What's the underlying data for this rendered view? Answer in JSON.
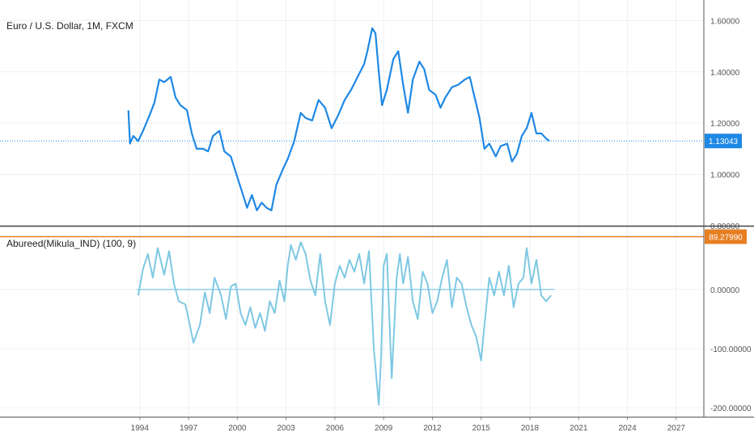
{
  "charts": {
    "price": {
      "title": "Euro / U.S. Dollar, 1M, FXCM",
      "type": "line",
      "color": "#1e88e5",
      "ylim": [
        0.8,
        1.68
      ],
      "yticks": [
        "1.60000",
        "1.40000",
        "1.20000",
        "1.00000",
        "0.80000"
      ],
      "ytick_values": [
        1.6,
        1.4,
        1.2,
        1.0,
        0.8
      ],
      "last_value": 1.13043,
      "last_label": "1.13043",
      "series": [
        {
          "x": [
            1993.3,
            1993.4,
            1993.6,
            1993.9,
            1994.2,
            1994.6,
            1994.9,
            1995.2,
            1995.5,
            1995.9,
            1996.2,
            1996.5,
            1996.9,
            1997.2,
            1997.5,
            1997.9,
            1998.2,
            1998.5,
            1998.9,
            1999.2,
            1999.6,
            2000.0,
            2000.3,
            2000.6,
            2000.9,
            2001.2,
            2001.5,
            2001.8,
            2002.1,
            2002.4,
            2002.8,
            2003.1,
            2003.5,
            2003.9,
            2004.2,
            2004.6,
            2005.0,
            2005.4,
            2005.8,
            2006.2,
            2006.6,
            2007.0,
            2007.4,
            2007.8,
            2008.0,
            2008.3,
            2008.5,
            2008.7,
            2008.9,
            2009.2,
            2009.6,
            2009.9,
            2010.2,
            2010.5,
            2010.8,
            2011.2,
            2011.5,
            2011.8,
            2012.2,
            2012.5,
            2012.8,
            2013.2,
            2013.6,
            2014.0,
            2014.3,
            2014.6,
            2014.9,
            2015.2,
            2015.5,
            2015.9,
            2016.2,
            2016.6,
            2016.9,
            2017.2,
            2017.5,
            2017.8,
            2018.1,
            2018.4,
            2018.7,
            2019.0,
            2019.2
          ],
          "y": [
            1.25,
            1.12,
            1.15,
            1.13,
            1.17,
            1.23,
            1.28,
            1.37,
            1.36,
            1.38,
            1.3,
            1.27,
            1.25,
            1.16,
            1.1,
            1.1,
            1.09,
            1.15,
            1.17,
            1.09,
            1.07,
            0.99,
            0.93,
            0.87,
            0.92,
            0.86,
            0.89,
            0.87,
            0.86,
            0.96,
            1.02,
            1.06,
            1.13,
            1.24,
            1.22,
            1.21,
            1.29,
            1.26,
            1.18,
            1.23,
            1.29,
            1.33,
            1.38,
            1.43,
            1.48,
            1.57,
            1.55,
            1.4,
            1.27,
            1.33,
            1.45,
            1.48,
            1.35,
            1.24,
            1.37,
            1.44,
            1.41,
            1.33,
            1.31,
            1.26,
            1.3,
            1.34,
            1.35,
            1.37,
            1.38,
            1.3,
            1.22,
            1.1,
            1.12,
            1.07,
            1.11,
            1.12,
            1.05,
            1.08,
            1.15,
            1.18,
            1.24,
            1.16,
            1.16,
            1.14,
            1.13
          ]
        }
      ]
    },
    "indicator": {
      "title": "Abureed(Mikula_IND) (100, 9)",
      "type": "line",
      "color": "#7ec8e3",
      "ylim": [
        -215,
        105
      ],
      "yticks": [
        "0.00000",
        "-100.00000",
        "-200.00000"
      ],
      "ytick_values": [
        0,
        -100,
        -200
      ],
      "upper_line_value": 89.2799,
      "upper_line_label": "89.27990",
      "upper_line_color": "#e67e22",
      "series": [
        {
          "x": [
            1993.9,
            1994.2,
            1994.5,
            1994.8,
            1995.1,
            1995.5,
            1995.8,
            1996.1,
            1996.4,
            1996.8,
            1997.0,
            1997.3,
            1997.7,
            1998.0,
            1998.3,
            1998.6,
            1999.0,
            1999.3,
            1999.6,
            1999.9,
            2000.2,
            2000.5,
            2000.8,
            2001.1,
            2001.4,
            2001.7,
            2002.0,
            2002.3,
            2002.6,
            2002.9,
            2003.1,
            2003.3,
            2003.6,
            2003.9,
            2004.2,
            2004.5,
            2004.8,
            2005.1,
            2005.4,
            2005.7,
            2006.0,
            2006.3,
            2006.6,
            2006.9,
            2007.2,
            2007.5,
            2007.8,
            2008.1,
            2008.4,
            2008.7,
            2008.85,
            2009.0,
            2009.2,
            2009.5,
            2009.8,
            2010.0,
            2010.2,
            2010.5,
            2010.8,
            2011.1,
            2011.4,
            2011.7,
            2012.0,
            2012.3,
            2012.6,
            2012.9,
            2013.2,
            2013.5,
            2013.8,
            2014.1,
            2014.4,
            2014.7,
            2015.0,
            2015.2,
            2015.5,
            2015.8,
            2016.1,
            2016.4,
            2016.7,
            2017.0,
            2017.3,
            2017.6,
            2017.8,
            2018.1,
            2018.4,
            2018.7,
            2019.0,
            2019.3
          ],
          "y": [
            -10,
            35,
            60,
            20,
            70,
            25,
            65,
            10,
            -20,
            -25,
            -50,
            -90,
            -60,
            -5,
            -40,
            20,
            -10,
            -50,
            5,
            10,
            -40,
            -60,
            -30,
            -65,
            -40,
            -70,
            -20,
            -40,
            15,
            -20,
            40,
            75,
            50,
            80,
            60,
            15,
            -10,
            60,
            -20,
            -60,
            10,
            40,
            20,
            50,
            30,
            60,
            10,
            65,
            -100,
            -195,
            -110,
            40,
            60,
            -150,
            20,
            60,
            10,
            55,
            -20,
            -50,
            30,
            10,
            -40,
            -20,
            20,
            50,
            -30,
            20,
            10,
            -30,
            -60,
            -80,
            -120,
            -60,
            20,
            -10,
            30,
            -10,
            40,
            -30,
            10,
            20,
            70,
            10,
            50,
            -10,
            -20,
            -10
          ]
        }
      ]
    },
    "xaxis": {
      "ticks": [
        "1994",
        "1997",
        "2000",
        "2003",
        "2006",
        "2009",
        "2012",
        "2015",
        "2018",
        "2021",
        "2024",
        "2027"
      ],
      "tick_values": [
        1994,
        1997,
        2000,
        2003,
        2006,
        2009,
        2012,
        2015,
        2018,
        2021,
        2024,
        2027
      ],
      "xlim": [
        1985.4,
        2028.7
      ]
    }
  }
}
